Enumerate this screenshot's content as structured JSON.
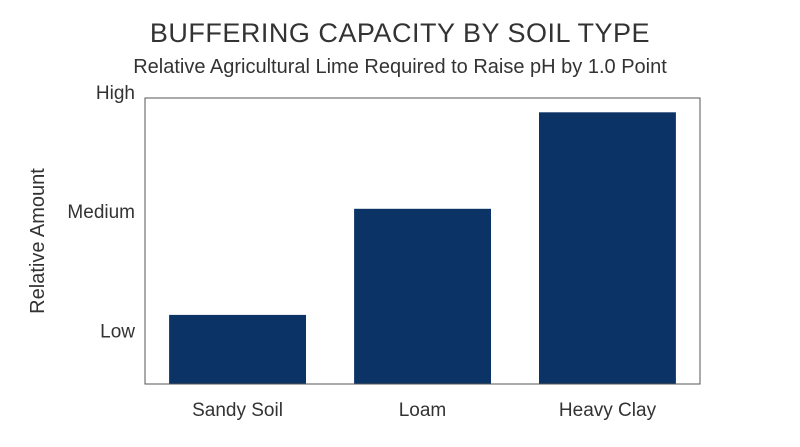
{
  "chart_data": {
    "type": "bar",
    "title": "BUFFERING CAPACITY BY SOIL TYPE",
    "subtitle": "Relative Agricultural Lime Required to Raise pH by 1.0 Point",
    "xlabel": "",
    "ylabel": "Relative Amount",
    "categories": [
      "Sandy Soil",
      "Loam",
      "Heavy Clay"
    ],
    "values": [
      0.58,
      1.47,
      2.28
    ],
    "yticks": [
      {
        "value": 0.45,
        "label": "Low"
      },
      {
        "value": 1.45,
        "label": "Medium"
      },
      {
        "value": 2.45,
        "label": "High"
      }
    ],
    "ylim": [
      0,
      2.4
    ],
    "grid": false,
    "bar_color": "#0b3366",
    "frame_color": "#555555"
  }
}
